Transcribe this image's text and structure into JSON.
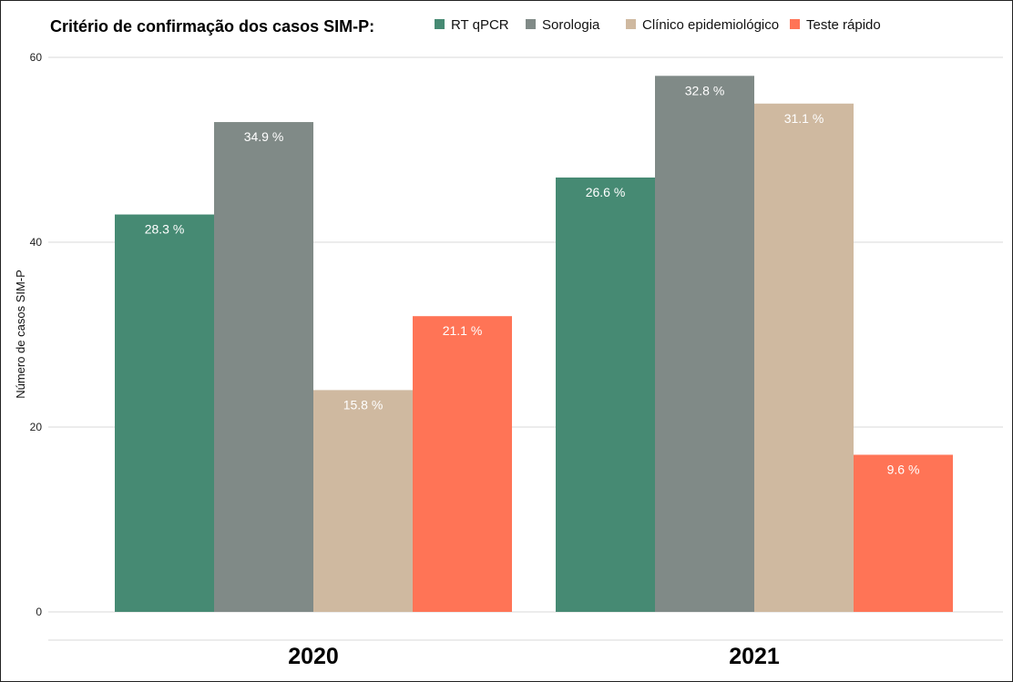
{
  "chart_data": {
    "type": "bar",
    "legend_title": "Critério de confirmação dos casos SIM-P:",
    "legend_position": "top",
    "ylabel": "Número de casos SIM-P",
    "xlabel": "",
    "categories": [
      "2020",
      "2021"
    ],
    "ylim": [
      0,
      60
    ],
    "yticks": [
      0,
      20,
      40,
      60
    ],
    "grid": true,
    "series": [
      {
        "name": "RT qPCR",
        "color": "#468A73",
        "values": [
          43,
          47
        ],
        "labels": [
          "28.3 %",
          "26.6 %"
        ]
      },
      {
        "name": "Sorologia",
        "color": "#808A87",
        "values": [
          53,
          58
        ],
        "labels": [
          "34.9 %",
          "32.8 %"
        ]
      },
      {
        "name": "Clínico epidemiológico",
        "color": "#CFB9A0",
        "values": [
          24,
          55
        ],
        "labels": [
          "15.8 %",
          "31.1 %"
        ]
      },
      {
        "name": "Teste rápido",
        "color": "#FF7456",
        "values": [
          32,
          17
        ],
        "labels": [
          "21.1 %",
          "9.6 %"
        ]
      }
    ]
  }
}
